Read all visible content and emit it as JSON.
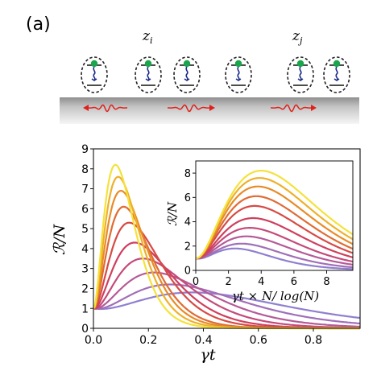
{
  "panel_label": "(a)",
  "schematic": {
    "site_labels": [
      {
        "base": "z",
        "sub": "i"
      },
      {
        "base": "z",
        "sub": "j"
      }
    ],
    "emitter_count": 7,
    "emission_arrows": [
      "left",
      "right",
      "right"
    ],
    "waveguide_color": "#bcbcbc",
    "photon_color": "#e0201b",
    "atom_color": "#1aa64a",
    "level_color": "#1b2a8a"
  },
  "chart_data": [
    {
      "type": "line",
      "title": "",
      "xlabel": "γt",
      "ylabel": "ℛ/N",
      "xlim": [
        0,
        0.97
      ],
      "ylim": [
        0,
        9
      ],
      "xticks": [
        "0.0",
        "0.2",
        "0.4",
        "0.6",
        "0.8"
      ],
      "yticks": [
        "0",
        "1",
        "2",
        "3",
        "4",
        "5",
        "6",
        "7",
        "8",
        "9"
      ],
      "colormap": [
        "#8f7fd0",
        "#a06fb8",
        "#b55a98",
        "#c44a7a",
        "#cf3f5e",
        "#d64a45",
        "#e06b33",
        "#e88b26",
        "#eeb02a",
        "#f4e23a"
      ],
      "series_peaks": [
        {
          "peak": 1.8,
          "peak_x": 0.36
        },
        {
          "peak": 2.2,
          "peak_x": 0.28
        },
        {
          "peak": 2.8,
          "peak_x": 0.22
        },
        {
          "peak": 3.5,
          "peak_x": 0.18
        },
        {
          "peak": 4.3,
          "peak_x": 0.15
        },
        {
          "peak": 5.3,
          "peak_x": 0.13
        },
        {
          "peak": 6.1,
          "peak_x": 0.11
        },
        {
          "peak": 6.9,
          "peak_x": 0.1
        },
        {
          "peak": 7.6,
          "peak_x": 0.09
        },
        {
          "peak": 8.2,
          "peak_x": 0.08
        }
      ]
    },
    {
      "type": "line",
      "title": "",
      "xlabel": "γt × N/ log(N)",
      "ylabel": "ℛ/N",
      "xlim": [
        0,
        9.6
      ],
      "ylim": [
        0,
        9
      ],
      "xticks": [
        "0",
        "2",
        "4",
        "6",
        "8"
      ],
      "yticks": [
        "0",
        "2",
        "4",
        "6",
        "8"
      ],
      "series_peaks": [
        {
          "peak": 1.8,
          "peak_x": 2.4
        },
        {
          "peak": 2.2,
          "peak_x": 2.8
        },
        {
          "peak": 2.8,
          "peak_x": 3.1
        },
        {
          "peak": 3.5,
          "peak_x": 3.3
        },
        {
          "peak": 4.3,
          "peak_x": 3.5
        },
        {
          "peak": 5.3,
          "peak_x": 3.6
        },
        {
          "peak": 6.1,
          "peak_x": 3.7
        },
        {
          "peak": 6.9,
          "peak_x": 3.8
        },
        {
          "peak": 7.6,
          "peak_x": 3.9
        },
        {
          "peak": 8.2,
          "peak_x": 4.0
        }
      ]
    }
  ]
}
